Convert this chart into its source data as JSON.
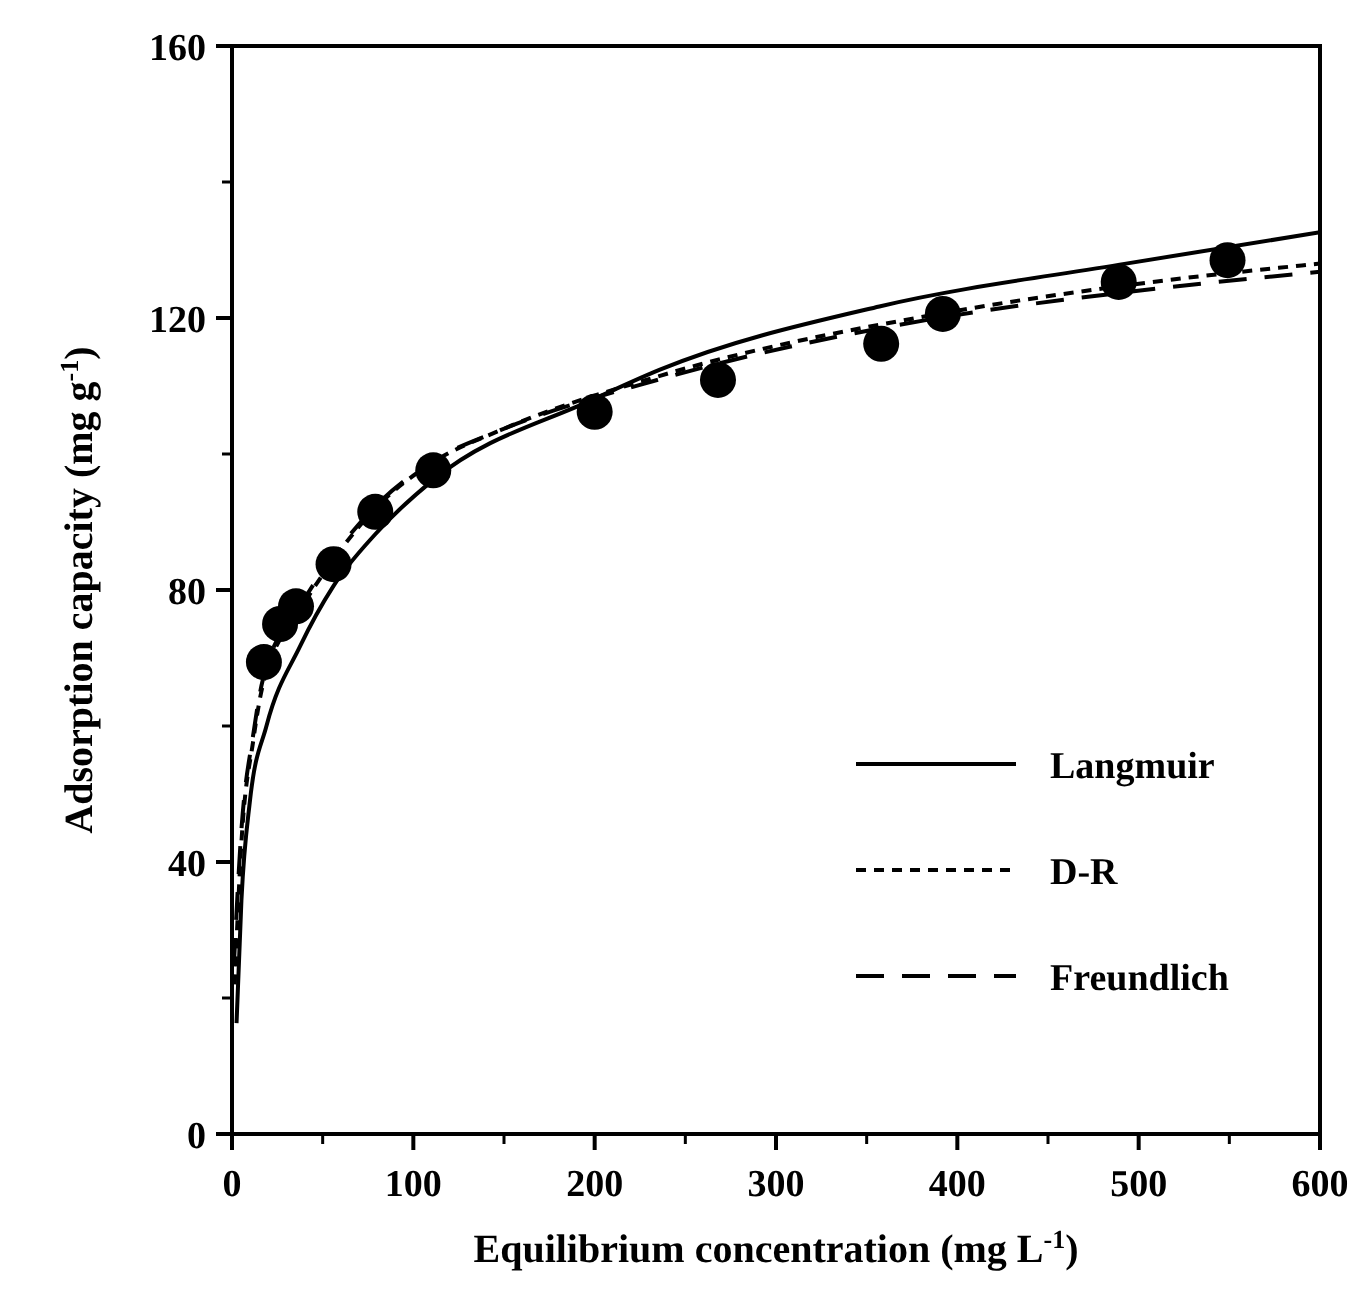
{
  "chart_data": {
    "type": "line",
    "xlabel": "Equilibrium concentration (mg L$^{-1}$)",
    "ylabel": "Adsorption capacity (mg g$^{-1}$)",
    "xlim": [
      0,
      600
    ],
    "ylim": [
      0,
      160
    ],
    "xticks": [
      0,
      100,
      200,
      300,
      400,
      500,
      600
    ],
    "yticks": [
      0,
      40,
      80,
      120,
      160
    ],
    "grid": false,
    "legend": "bottom right",
    "series": [
      {
        "type": "scatter",
        "marker": "circle",
        "color": "#000000",
        "x": [
          17.6,
          26.5,
          35.3,
          56,
          79,
          111,
          200,
          268,
          358,
          392,
          489,
          549
        ],
        "values": [
          69.4,
          75,
          77.6,
          83.8,
          91.5,
          97.6,
          106.2,
          110.9,
          116.2,
          120.6,
          125.3,
          128.5
        ]
      },
      {
        "name": "Langmuir",
        "color": "#000000",
        "line_style": "solid",
        "x": [
          2.5,
          5.2,
          9.9,
          19,
          37.5,
          56,
          79,
          111,
          199,
          236,
          357,
          493,
          600
        ],
        "values": [
          16.3,
          34.4,
          49,
          60,
          71.7,
          80.6,
          88.2,
          96.2,
          108,
          112.4,
          121.7,
          128,
          132.6
        ]
      },
      {
        "name": "D-R",
        "color": "#000000",
        "line_style": "dotted",
        "x": [
          1.5,
          5,
          11.8,
          17,
          37.5,
          56,
          79,
          111,
          148,
          236,
          394,
          493,
          600
        ],
        "values": [
          22,
          42,
          58,
          66,
          77,
          84.5,
          92,
          98.8,
          103.5,
          111.5,
          120.8,
          124.8,
          128
        ]
      },
      {
        "name": "Freundlich",
        "color": "#000000",
        "line_style": "dashed",
        "x": [
          1,
          5,
          11.8,
          17,
          37.5,
          56,
          79,
          111,
          148,
          236,
          394,
          493,
          600
        ],
        "values": [
          24.7,
          44,
          58.9,
          66.8,
          77.6,
          85,
          92.3,
          99,
          103.5,
          111,
          120.2,
          123.8,
          126.8
        ]
      }
    ]
  }
}
